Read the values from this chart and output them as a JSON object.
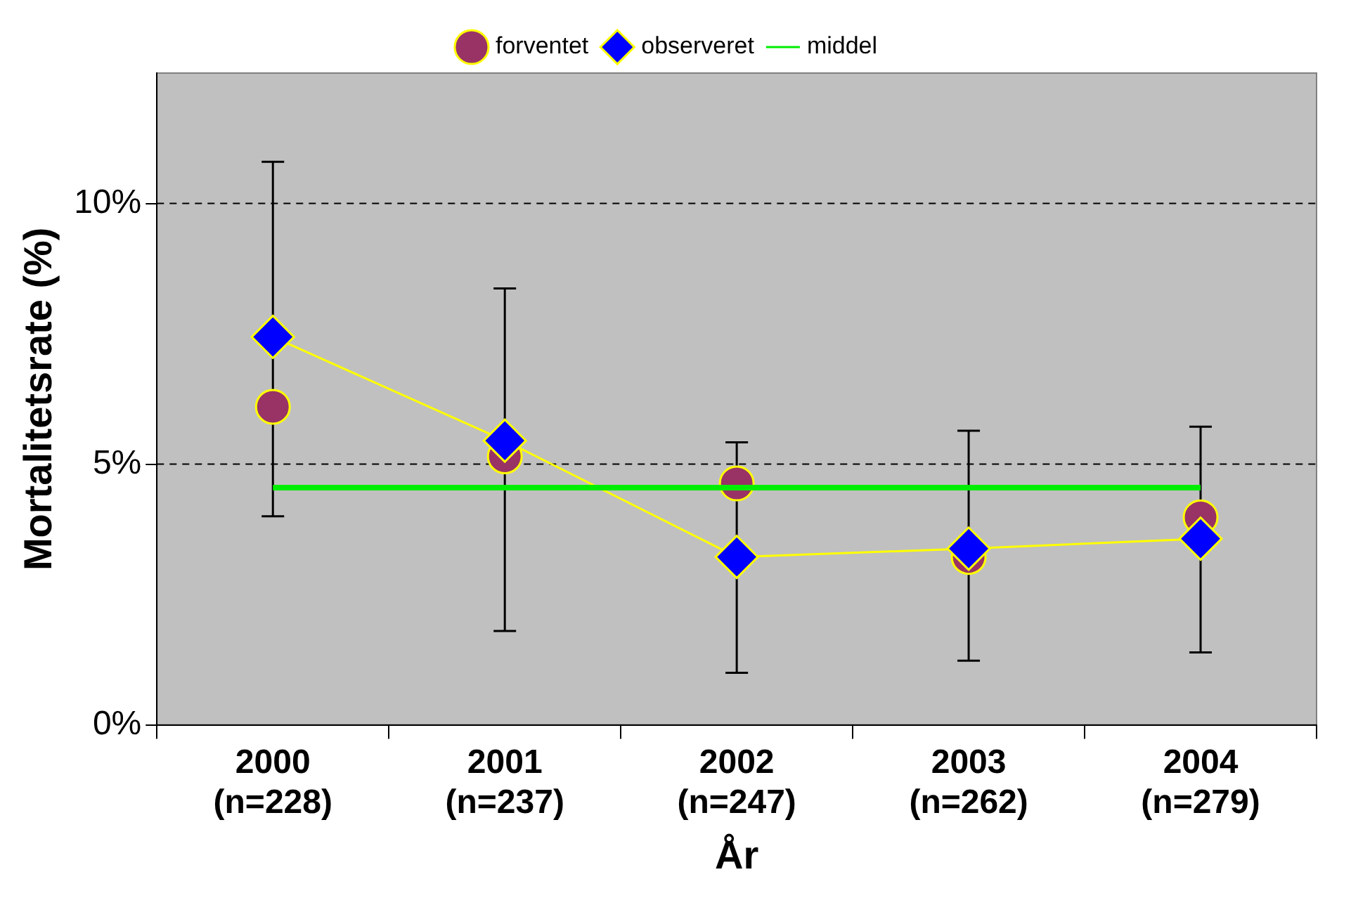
{
  "chart_data": {
    "type": "line",
    "xlabel": "År",
    "ylabel": "Mortalitetsrate (%)",
    "categories": [
      "2000 (n=228)",
      "2001 (n=237)",
      "2002 (n=247)",
      "2003 (n=262)",
      "2004 (n=279)"
    ],
    "series": [
      {
        "name": "forventet",
        "type": "scatter",
        "marker": "circle",
        "color": "#993366",
        "values": [
          6.1,
          5.15,
          4.63,
          3.22,
          3.98
        ]
      },
      {
        "name": "observeret",
        "marker": "diamond",
        "color": "#0000ff",
        "values": [
          7.44,
          5.45,
          3.22,
          3.38,
          3.57
        ],
        "errors": [
          [
            4.0,
            10.8
          ],
          [
            1.8,
            8.37
          ],
          [
            1.0,
            5.42
          ],
          [
            1.23,
            5.64
          ],
          [
            1.39,
            5.72
          ]
        ]
      },
      {
        "name": "middel",
        "marker": "none",
        "color": "#00ee00",
        "values": [
          4.55,
          4.55,
          4.55,
          4.55,
          4.55
        ]
      }
    ],
    "ylim": [
      0,
      12.5
    ],
    "yticks": [
      {
        "value": 0,
        "label": "0%"
      },
      {
        "value": 5,
        "label": "5%"
      },
      {
        "value": 10,
        "label": "10%"
      }
    ],
    "grid": "y",
    "legend": "top"
  }
}
